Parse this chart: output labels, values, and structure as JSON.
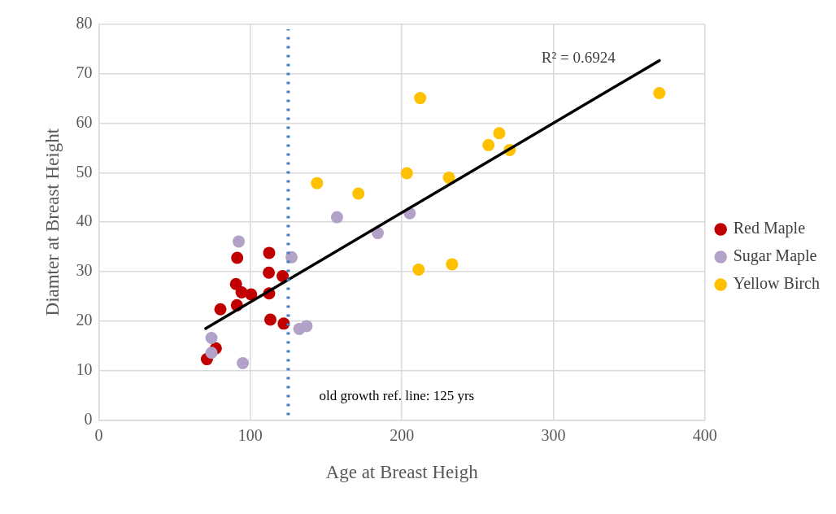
{
  "chart_data": {
    "type": "scatter",
    "xlabel": "Age at Breast Heigh",
    "ylabel": "Diamter at Breast Height",
    "xlim": [
      0,
      400
    ],
    "xticks": [
      0,
      100,
      200,
      300,
      400
    ],
    "ylim": [
      0,
      80
    ],
    "yticks": [
      0,
      10,
      20,
      30,
      40,
      50,
      60,
      70,
      80
    ],
    "grid": true,
    "legend": "right",
    "marker": "circle",
    "series": [
      {
        "name": "Red Maple",
        "color": "#c00000",
        "x": [
          71.3,
          77.2,
          80.2,
          91.1,
          90.5,
          94.2,
          100.5,
          91.3,
          112.4,
          112.2,
          112.4,
          121.3,
          113.2,
          122
        ],
        "values": [
          12.3,
          14.5,
          22.4,
          23.2,
          27.5,
          25.8,
          25.4,
          32.8,
          33.8,
          29.8,
          25.6,
          29.1,
          20.3,
          19.5
        ]
      },
      {
        "name": "Sugar Maple",
        "color": "#b3a2c7",
        "x": [
          92.3,
          127.2,
          74.3,
          74.3,
          95,
          132.3,
          137.1,
          157.2,
          184.1,
          205.2
        ],
        "values": [
          36.1,
          32.9,
          16.6,
          13.6,
          11.5,
          18.4,
          19,
          41,
          37.8,
          41.8
        ]
      },
      {
        "name": "Yellow Birch",
        "color": "#ffc000",
        "x": [
          144,
          171.3,
          203.3,
          231.1,
          212.1,
          257.2,
          264.3,
          271.2,
          370,
          211.1,
          233.1
        ],
        "values": [
          47.9,
          45.8,
          49.9,
          49,
          65.1,
          55.6,
          58,
          54.6,
          66.1,
          30.4,
          31.5
        ]
      },
      {
        "type": "line",
        "color": "#000000",
        "marker": "none",
        "x": [
          70.5,
          370
        ],
        "values": [
          18.5,
          72.7
        ]
      }
    ],
    "ref_lines": [
      {
        "axis": "x",
        "value": 125,
        "label": "old growth ref. line: 125 yrs",
        "color": "#4a7ebb",
        "line_style": "dotted"
      }
    ],
    "annotations": [
      "R² = 0.6924"
    ]
  }
}
